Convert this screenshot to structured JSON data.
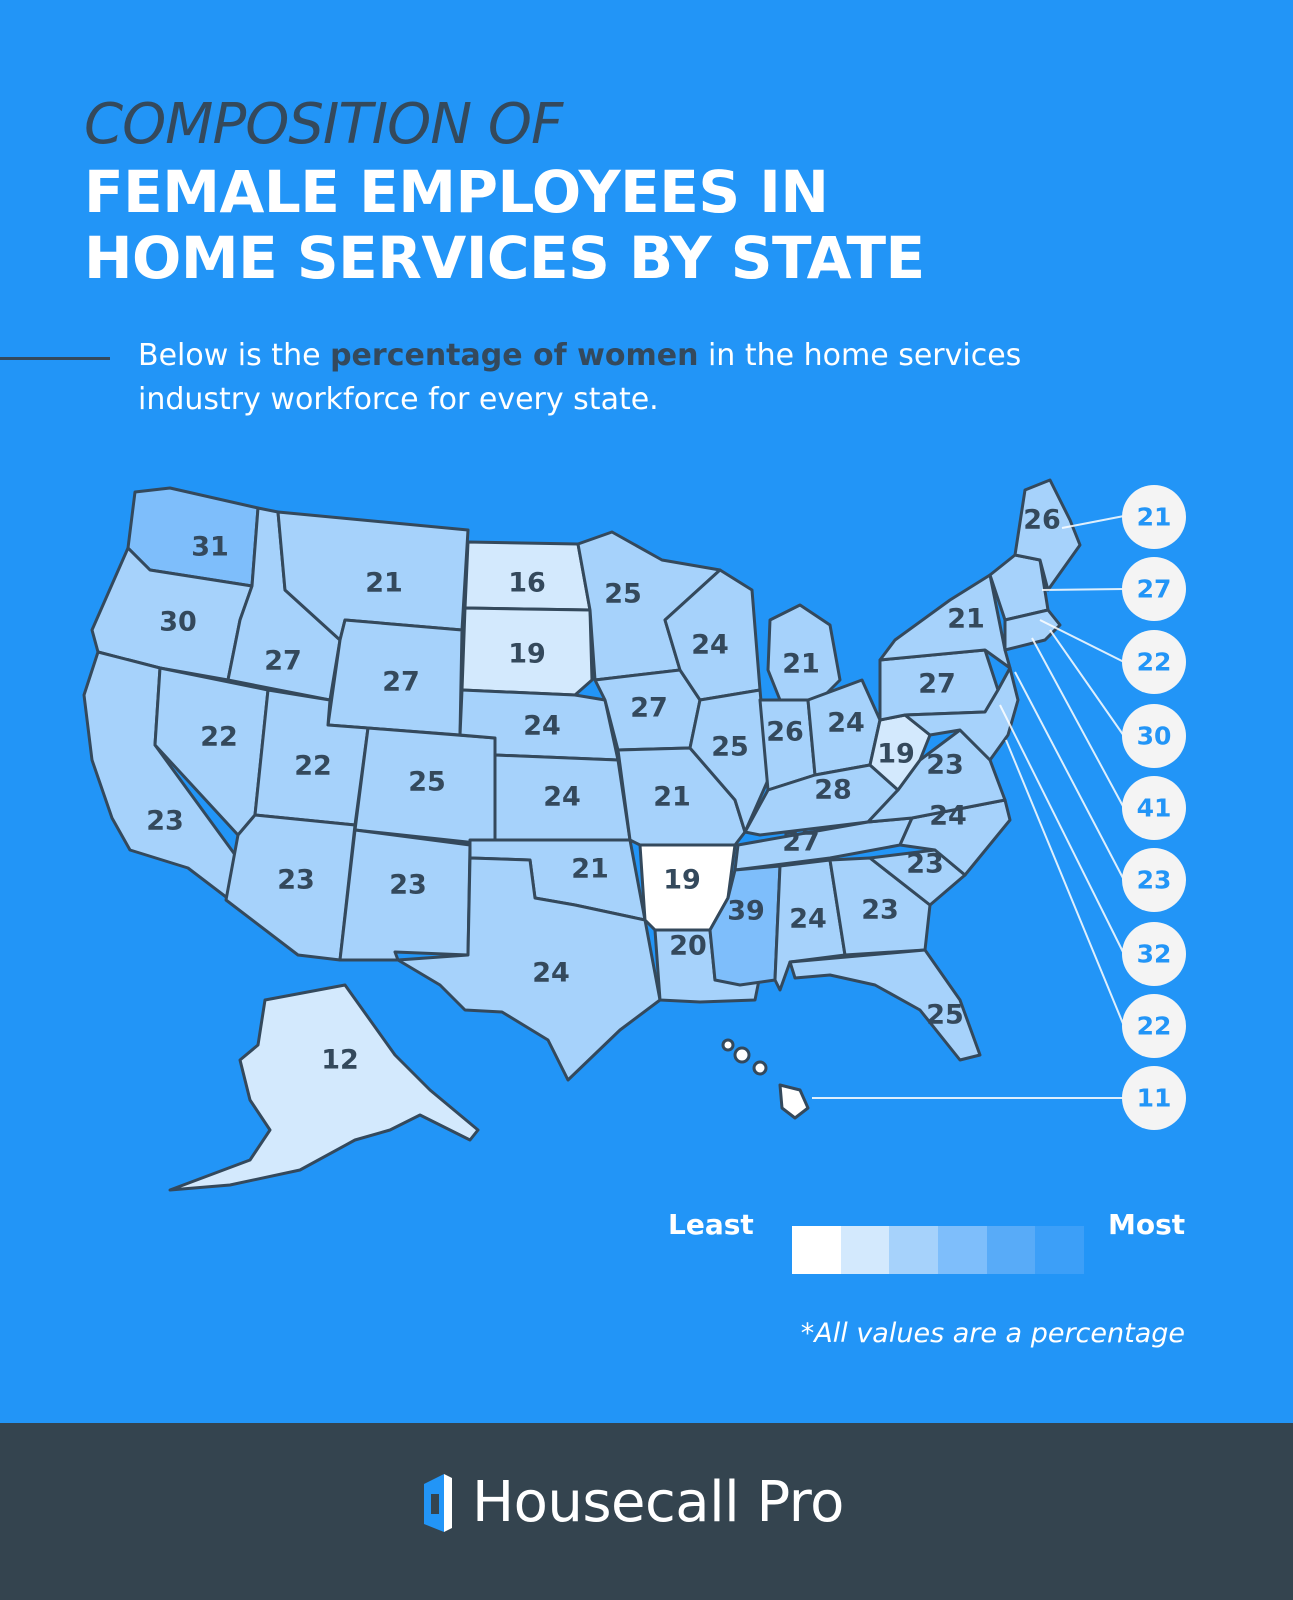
{
  "title": {
    "line1": "COMPOSITION OF",
    "line2": "FEMALE EMPLOYEES IN",
    "line3": "HOME SERVICES BY STATE"
  },
  "intro": {
    "before": "Below is the ",
    "bold": "percentage of women",
    "after": " in the home services industry workforce for every state."
  },
  "map_values": {
    "WA": "31",
    "OR": "30",
    "CA": "23",
    "ID": "27",
    "NV": "22",
    "MT": "21",
    "WY": "27",
    "UT": "22",
    "AZ": "23",
    "CO": "25",
    "NM": "23",
    "ND": "16",
    "SD": "19",
    "NE": "24",
    "KS": "24",
    "OK": "21",
    "TX": "24",
    "MN": "25",
    "IA": "27",
    "MO": "21",
    "AR": "19",
    "LA": "20",
    "WI": "24",
    "IL": "25",
    "MI": "21",
    "IN": "26",
    "OH": "24",
    "KY": "28",
    "TN": "27",
    "MS": "39",
    "AL": "24",
    "GA": "23",
    "FL": "25",
    "SC": "23",
    "NC": "24",
    "VA": "23",
    "WV": "19",
    "PA": "27",
    "NY": "21",
    "ME": "26",
    "AK": "12"
  },
  "callouts": [
    "21",
    "27",
    "22",
    "30",
    "41",
    "23",
    "32",
    "22",
    "11"
  ],
  "legend": {
    "least_label": "Least",
    "most_label": "Most",
    "colors": [
      "#ffffff",
      "#d3e9fd",
      "#a6d2fb",
      "#7ebefb",
      "#58abf8",
      "#3c9ff8"
    ]
  },
  "footnote": "*All values are a percentage",
  "brand": {
    "name": "Housecall Pro",
    "icon": "housecall-pro-logo-icon"
  },
  "colors": {
    "background": "#2295f7",
    "footer": "#34444f",
    "dark_text": "#34495c"
  }
}
